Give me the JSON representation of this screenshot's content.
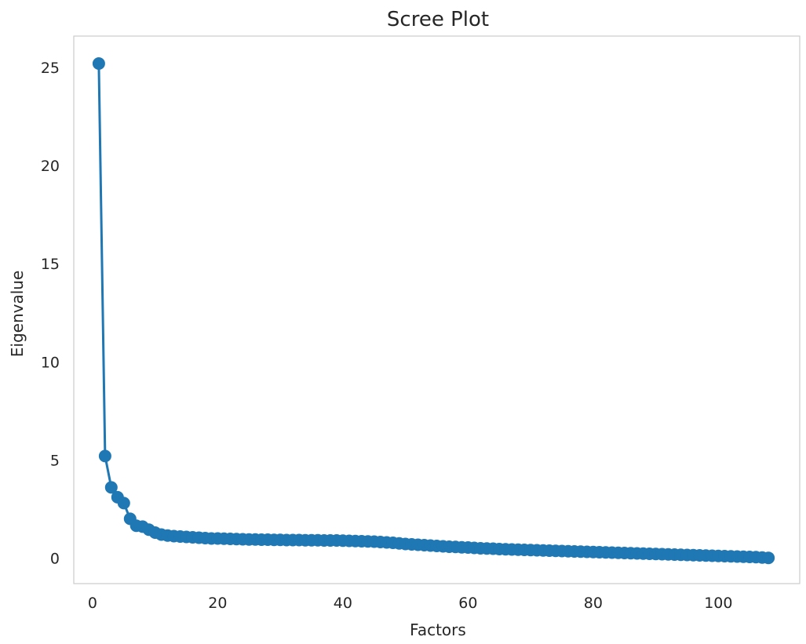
{
  "chart_data": {
    "type": "line",
    "title": "Scree Plot",
    "xlabel": "Factors",
    "ylabel": "Eigenvalue",
    "xlim": [
      -3,
      113
    ],
    "ylim": [
      -1.3,
      26.6
    ],
    "xticks": [
      0,
      20,
      40,
      60,
      80,
      100
    ],
    "yticks": [
      0,
      5,
      10,
      15,
      20,
      25
    ],
    "grid": false,
    "legend": "none",
    "colors": {
      "series": "#1f77b4",
      "frame": "#cccccc",
      "text": "#262626"
    },
    "series": [
      {
        "x": [
          1,
          2,
          3,
          4,
          5,
          6,
          7,
          8,
          9,
          10,
          11,
          12,
          13,
          14,
          15,
          16,
          17,
          18,
          19,
          20,
          21,
          22,
          23,
          24,
          25,
          26,
          27,
          28,
          29,
          30,
          31,
          32,
          33,
          34,
          35,
          36,
          37,
          38,
          39,
          40,
          41,
          42,
          43,
          44,
          45,
          46,
          47,
          48,
          49,
          50,
          51,
          52,
          53,
          54,
          55,
          56,
          57,
          58,
          59,
          60,
          61,
          62,
          63,
          64,
          65,
          66,
          67,
          68,
          69,
          70,
          71,
          72,
          73,
          74,
          75,
          76,
          77,
          78,
          79,
          80,
          81,
          82,
          83,
          84,
          85,
          86,
          87,
          88,
          89,
          90,
          91,
          92,
          93,
          94,
          95,
          96,
          97,
          98,
          99,
          100,
          101,
          102,
          103,
          104,
          105,
          106,
          107,
          108
        ],
        "values": [
          25.2,
          5.2,
          3.6,
          3.1,
          2.8,
          2.0,
          1.65,
          1.6,
          1.45,
          1.3,
          1.2,
          1.15,
          1.12,
          1.1,
          1.08,
          1.06,
          1.04,
          1.02,
          1.0,
          1.0,
          0.99,
          0.98,
          0.97,
          0.96,
          0.95,
          0.95,
          0.94,
          0.94,
          0.93,
          0.93,
          0.92,
          0.92,
          0.92,
          0.91,
          0.91,
          0.91,
          0.9,
          0.9,
          0.9,
          0.89,
          0.88,
          0.87,
          0.86,
          0.85,
          0.84,
          0.82,
          0.8,
          0.78,
          0.75,
          0.72,
          0.7,
          0.68,
          0.66,
          0.64,
          0.62,
          0.6,
          0.58,
          0.57,
          0.55,
          0.54,
          0.52,
          0.5,
          0.49,
          0.48,
          0.46,
          0.45,
          0.44,
          0.43,
          0.42,
          0.41,
          0.4,
          0.39,
          0.38,
          0.37,
          0.36,
          0.35,
          0.34,
          0.33,
          0.32,
          0.31,
          0.3,
          0.29,
          0.28,
          0.27,
          0.26,
          0.25,
          0.24,
          0.23,
          0.22,
          0.21,
          0.2,
          0.19,
          0.18,
          0.17,
          0.16,
          0.15,
          0.14,
          0.13,
          0.12,
          0.11,
          0.1,
          0.09,
          0.08,
          0.07,
          0.06,
          0.05,
          0.03,
          0.01
        ]
      }
    ]
  }
}
